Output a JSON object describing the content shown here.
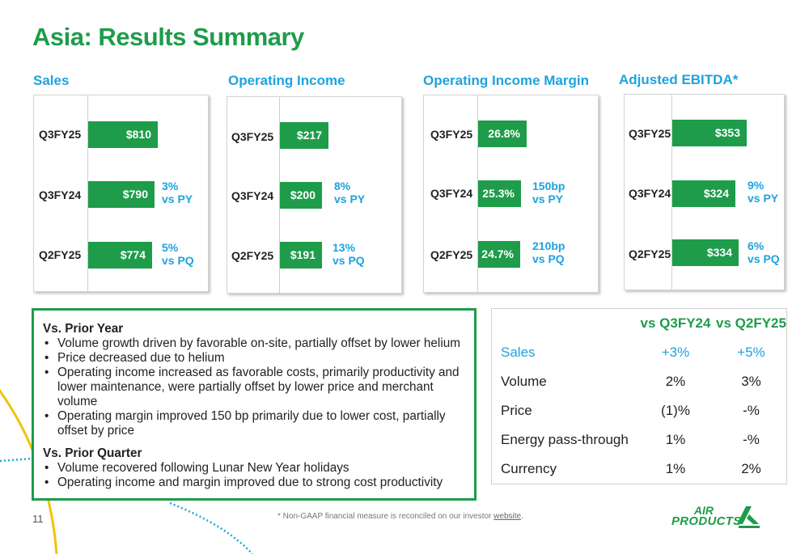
{
  "page_title": "Asia:  Results Summary",
  "panels": [
    {
      "title": "Sales",
      "rows": [
        {
          "label": "Q3FY25",
          "value": "$810",
          "amount": 810,
          "delta_line1": "",
          "delta_line2": ""
        },
        {
          "label": "Q3FY24",
          "value": "$790",
          "amount": 790,
          "delta_line1": "3%",
          "delta_line2": "vs PY"
        },
        {
          "label": "Q2FY25",
          "value": "$774",
          "amount": 774,
          "delta_line1": "5%",
          "delta_line2": "vs PQ"
        }
      ]
    },
    {
      "title": "Operating Income",
      "rows": [
        {
          "label": "Q3FY25",
          "value": "$217",
          "amount": 217,
          "delta_line1": "",
          "delta_line2": ""
        },
        {
          "label": "Q3FY24",
          "value": "$200",
          "amount": 200,
          "delta_line1": "8%",
          "delta_line2": "vs PY"
        },
        {
          "label": "Q2FY25",
          "value": "$191",
          "amount": 191,
          "delta_line1": "13%",
          "delta_line2": "vs PQ"
        }
      ]
    },
    {
      "title": "Operating Income Margin",
      "rows": [
        {
          "label": "Q3FY25",
          "value": "26.8%",
          "amount": 26.8,
          "delta_line1": "",
          "delta_line2": ""
        },
        {
          "label": "Q3FY24",
          "value": "25.3%",
          "amount": 25.3,
          "delta_line1": "150bp",
          "delta_line2": "vs PY"
        },
        {
          "label": "Q2FY25",
          "value": "24.7%",
          "amount": 24.7,
          "delta_line1": "210bp",
          "delta_line2": "vs PQ"
        }
      ]
    },
    {
      "title": "Adjusted EBITDA*",
      "rows": [
        {
          "label": "Q3FY25",
          "value": "$353",
          "amount": 353,
          "delta_line1": "",
          "delta_line2": ""
        },
        {
          "label": "Q3FY24",
          "value": "$324",
          "amount": 324,
          "delta_line1": "9%",
          "delta_line2": "vs PY"
        },
        {
          "label": "Q2FY25",
          "value": "$334",
          "amount": 334,
          "delta_line1": "6%",
          "delta_line2": "vs PQ"
        }
      ]
    }
  ],
  "commentary": {
    "prior_year_heading": "Vs. Prior Year",
    "prior_year_bullets": [
      "Volume growth driven by favorable on-site, partially offset by lower helium",
      "Price decreased due to helium",
      "Operating income increased as favorable costs, primarily productivity and lower maintenance, were partially offset by lower price and merchant volume",
      "Operating margin improved 150 bp primarily due to lower cost, partially offset by price"
    ],
    "prior_quarter_heading": "Vs. Prior Quarter",
    "prior_quarter_bullets": [
      "Volume recovered following Lunar New Year holidays",
      "Operating income and margin improved due to strong cost productivity"
    ]
  },
  "drivers_table": {
    "col1_header": "vs Q3FY24",
    "col2_header": "vs Q2FY25",
    "rows": [
      {
        "label": "Sales",
        "vs_py": "+3%",
        "vs_pq": "+5%"
      },
      {
        "label": "Volume",
        "vs_py": "2%",
        "vs_pq": "3%"
      },
      {
        "label": "Price",
        "vs_py": "(1)%",
        "vs_pq": "-%"
      },
      {
        "label": "Energy pass-through",
        "vs_py": "1%",
        "vs_pq": "-%"
      },
      {
        "label": "Currency",
        "vs_py": "1%",
        "vs_pq": "2%"
      }
    ]
  },
  "footer": {
    "page_number": "11",
    "footnote_text": "* Non-GAAP financial measure is reconciled on our investor ",
    "footnote_link": "website",
    "footnote_end": "."
  },
  "logo": {
    "line1": "AIR",
    "line2": "PRODUCTS"
  },
  "colors": {
    "green": "#1e9c4a",
    "blue": "#1ea3dd",
    "yellow": "#f2c400"
  }
}
